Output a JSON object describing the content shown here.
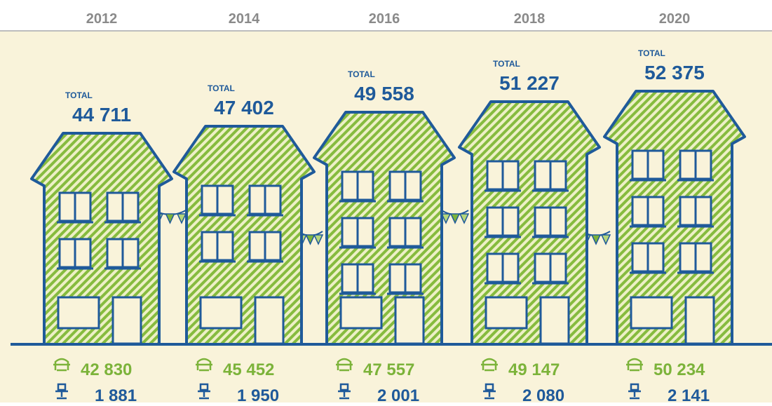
{
  "total_label": "TOTAL",
  "columns": [
    {
      "year": "2012",
      "total": "44 711",
      "armchairs": "42 830",
      "chairs": "1 881"
    },
    {
      "year": "2014",
      "total": "47 402",
      "armchairs": "45 452",
      "chairs": "1 950"
    },
    {
      "year": "2016",
      "total": "49 558",
      "armchairs": "47 557",
      "chairs": "2 001"
    },
    {
      "year": "2018",
      "total": "51 227",
      "armchairs": "49 147",
      "chairs": "2 080"
    },
    {
      "year": "2020",
      "total": "52 375",
      "armchairs": "50 234",
      "chairs": "2 141"
    }
  ]
}
